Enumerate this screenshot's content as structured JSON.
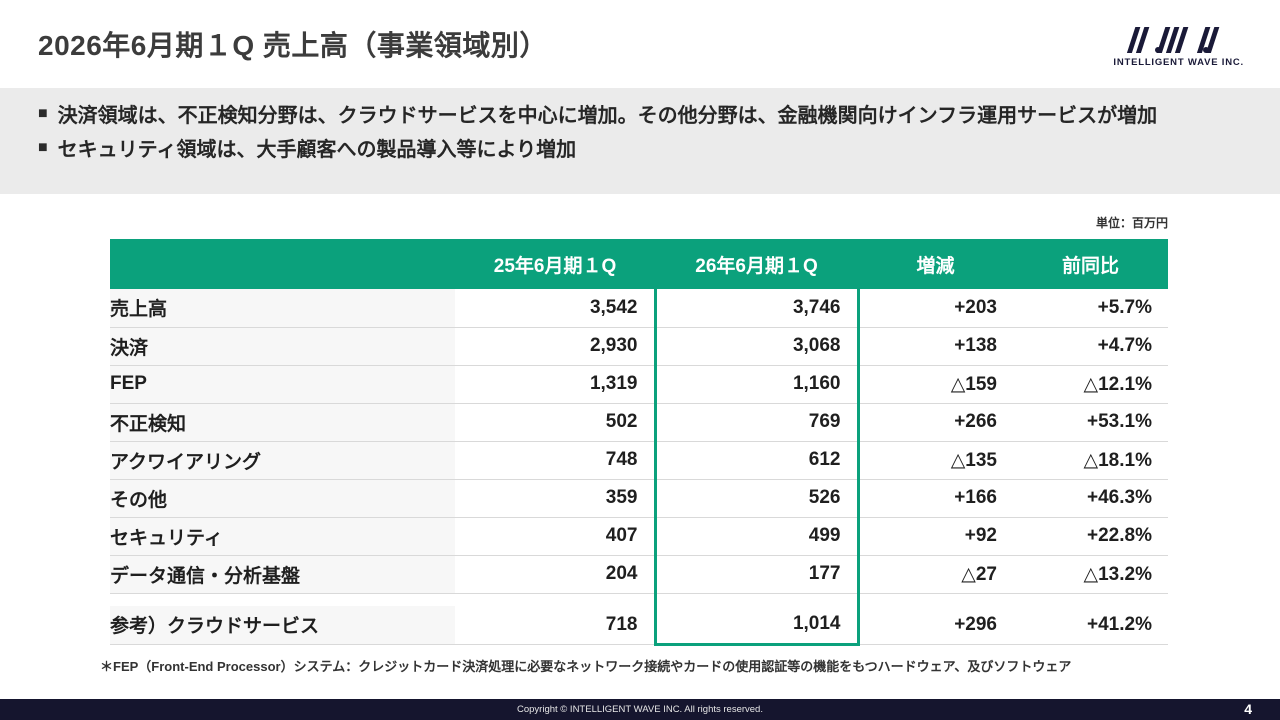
{
  "slide": {
    "title": "2026年6月期１Q 売上高（事業領域別）",
    "unit_label": "単位：百万円",
    "footnote": "＊FEP（Front-End Processor）システム：クレジットカード決済処理に必要なネットワーク接続やカードの使用認証等の機能をもつハードウェア、及びソフトウェア",
    "copyright": "Copyright © INTELLIGENT WAVE INC. All rights reserved.",
    "page_number": "4"
  },
  "logo": {
    "company": "INTELLIGENT WAVE INC."
  },
  "bullets": {
    "marker": "■",
    "items": [
      "決済領域は、不正検知分野は、クラウドサービスを中心に増加。その他分野は、金融機関向けインフラ運用サービスが増加",
      "セキュリティ領域は、大手顧客への製品導入等により増加"
    ]
  },
  "table": {
    "headers": [
      "",
      "25年6月期１Q",
      "26年6月期１Q",
      "増減",
      "前同比"
    ],
    "rows": [
      {
        "label": "売上高",
        "indent": 0,
        "q25": "3,542",
        "q26": "3,746",
        "change": "+203",
        "yoy": "+5.7%"
      },
      {
        "label": "決済",
        "indent": 1,
        "q25": "2,930",
        "q26": "3,068",
        "change": "+138",
        "yoy": "+4.7%"
      },
      {
        "label": "FEP",
        "indent": 2,
        "q25": "1,319",
        "q26": "1,160",
        "change": "△159",
        "yoy": "△12.1%"
      },
      {
        "label": "不正検知",
        "indent": 2,
        "q25": "502",
        "q26": "769",
        "change": "+266",
        "yoy": "+53.1%"
      },
      {
        "label": "アクワイアリング",
        "indent": 2,
        "q25": "748",
        "q26": "612",
        "change": "△135",
        "yoy": "△18.1%"
      },
      {
        "label": "その他",
        "indent": 2,
        "q25": "359",
        "q26": "526",
        "change": "+166",
        "yoy": "+46.3%"
      },
      {
        "label": "セキュリティ",
        "indent": 1,
        "q25": "407",
        "q26": "499",
        "change": "+92",
        "yoy": "+22.8%"
      },
      {
        "label": "データ通信・分析基盤",
        "indent": 1,
        "q25": "204",
        "q26": "177",
        "change": "△27",
        "yoy": "△13.2%"
      }
    ],
    "reference_row": {
      "label": "参考）クラウドサービス",
      "indent": 0,
      "q25": "718",
      "q26": "1,014",
      "change": "+296",
      "yoy": "+41.2%"
    }
  },
  "colors": {
    "accent_green": "#0ba17c",
    "footer_bg": "#15152e",
    "logo_navy": "#1a1a38"
  }
}
